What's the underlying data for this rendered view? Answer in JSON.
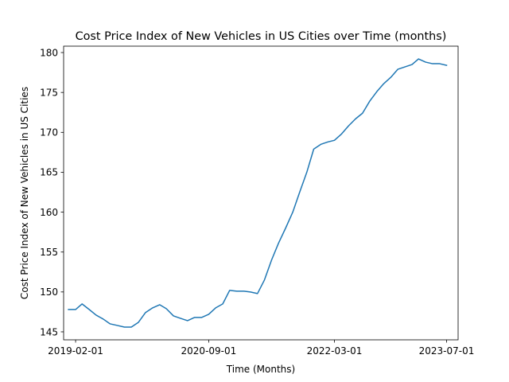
{
  "chart_data": {
    "type": "line",
    "title": "Cost Price Index of New Vehicles in US Cities over Time (months)",
    "xlabel": "Time (Months)",
    "ylabel": "Cost Price Index of New Vehicles in US Cities",
    "xlim": [
      "2018-12-11",
      "2023-08-20"
    ],
    "ylim": [
      144.0,
      180.8
    ],
    "x_ticks": [
      "2019-02-01",
      "2020-09-01",
      "2022-03-01",
      "2023-07-01"
    ],
    "y_ticks": [
      145,
      150,
      155,
      160,
      165,
      170,
      175,
      180
    ],
    "grid": false,
    "legend": "none",
    "colors": {
      "line": "#1f77b4",
      "axes": "#000000",
      "background": "#ffffff"
    },
    "series": [
      {
        "x": [
          "2019-01-01",
          "2019-02-01",
          "2019-03-01",
          "2019-04-01",
          "2019-05-01",
          "2019-06-01",
          "2019-07-01",
          "2019-08-01",
          "2019-09-01",
          "2019-10-01",
          "2019-11-01",
          "2019-12-01",
          "2020-01-01",
          "2020-02-01",
          "2020-03-01",
          "2020-04-01",
          "2020-05-01",
          "2020-06-01",
          "2020-07-01",
          "2020-08-01",
          "2020-09-01",
          "2020-10-01",
          "2020-11-01",
          "2020-12-01",
          "2021-01-01",
          "2021-02-01",
          "2021-03-01",
          "2021-04-01",
          "2021-05-01",
          "2021-06-01",
          "2021-07-01",
          "2021-08-01",
          "2021-09-01",
          "2021-10-01",
          "2021-11-01",
          "2021-12-01",
          "2022-01-01",
          "2022-02-01",
          "2022-03-01",
          "2022-04-01",
          "2022-05-01",
          "2022-06-01",
          "2022-07-01",
          "2022-08-01",
          "2022-09-01",
          "2022-10-01",
          "2022-11-01",
          "2022-12-01",
          "2023-01-01",
          "2023-02-01",
          "2023-03-01",
          "2023-04-01",
          "2023-05-01",
          "2023-06-01",
          "2023-07-01"
        ],
        "values": [
          147.8,
          147.8,
          148.5,
          147.8,
          147.1,
          146.6,
          146.0,
          145.8,
          145.6,
          145.6,
          146.2,
          147.4,
          148.0,
          148.4,
          147.9,
          147.0,
          146.7,
          146.4,
          146.8,
          146.8,
          147.2,
          148.0,
          148.5,
          150.2,
          150.1,
          150.1,
          150.0,
          149.8,
          151.5,
          154.0,
          156.1,
          158.0,
          160.0,
          162.5,
          165.0,
          167.9,
          168.5,
          168.8,
          169.0,
          169.8,
          170.8,
          171.7,
          172.4,
          173.9,
          175.1,
          176.1,
          176.9,
          177.9,
          178.2,
          178.5,
          179.2,
          178.8,
          178.6,
          178.6,
          178.4
        ]
      }
    ]
  }
}
